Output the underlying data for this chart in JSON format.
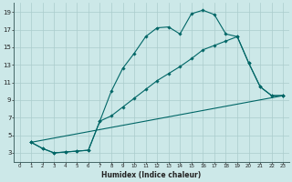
{
  "xlabel": "Humidex (Indice chaleur)",
  "bg_color": "#cce8e8",
  "grid_color": "#aacccc",
  "line_color": "#006666",
  "xlim": [
    -0.5,
    23.5
  ],
  "ylim": [
    2,
    20
  ],
  "xticks": [
    0,
    1,
    2,
    3,
    4,
    5,
    6,
    7,
    8,
    9,
    10,
    11,
    12,
    13,
    14,
    15,
    16,
    17,
    18,
    19,
    20,
    21,
    22,
    23
  ],
  "yticks": [
    3,
    5,
    7,
    9,
    11,
    13,
    15,
    17,
    19
  ],
  "curve1_x": [
    1,
    2,
    3,
    4,
    5,
    6,
    7,
    8,
    9,
    10,
    11,
    12,
    13,
    14,
    15,
    16,
    17,
    18,
    19,
    20,
    21,
    22,
    23
  ],
  "curve1_y": [
    4.2,
    3.5,
    3.0,
    3.1,
    3.2,
    3.3,
    6.6,
    10.0,
    12.6,
    14.3,
    16.2,
    17.2,
    17.3,
    16.5,
    18.8,
    19.2,
    18.7,
    16.5,
    16.2,
    13.2,
    10.5,
    9.5,
    9.5
  ],
  "curve2_x": [
    1,
    2,
    3,
    4,
    5,
    6,
    7,
    8,
    9,
    10,
    11,
    12,
    13,
    14,
    15,
    16,
    17,
    18,
    19,
    20,
    21,
    22,
    23
  ],
  "curve2_y": [
    4.2,
    3.5,
    3.0,
    3.1,
    3.2,
    3.3,
    6.6,
    7.2,
    8.2,
    9.2,
    10.2,
    11.2,
    12.0,
    12.8,
    13.7,
    14.7,
    15.2,
    15.7,
    16.2,
    13.2,
    10.5,
    9.5,
    9.5
  ],
  "curve3_x": [
    1,
    23
  ],
  "curve3_y": [
    4.2,
    9.5
  ]
}
